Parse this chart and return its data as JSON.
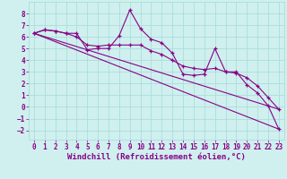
{
  "background_color": "#cff0ee",
  "line_color": "#880088",
  "grid_color": "#aadddd",
  "xlabel": "Windchill (Refroidissement éolien,°C)",
  "xlabel_fontsize": 6.5,
  "tick_fontsize": 5.5,
  "xlim": [
    -0.5,
    23.5
  ],
  "ylim": [
    -2.8,
    9.0
  ],
  "yticks": [
    -2,
    -1,
    0,
    1,
    2,
    3,
    4,
    5,
    6,
    7,
    8
  ],
  "xticks": [
    0,
    1,
    2,
    3,
    4,
    5,
    6,
    7,
    8,
    9,
    10,
    11,
    12,
    13,
    14,
    15,
    16,
    17,
    18,
    19,
    20,
    21,
    22,
    23
  ],
  "series1_x": [
    0,
    1,
    2,
    3,
    4,
    5,
    6,
    7,
    8,
    9,
    10,
    11,
    12,
    13,
    14,
    15,
    16,
    17,
    18,
    19,
    20,
    21,
    22,
    23
  ],
  "series1_y": [
    6.3,
    6.6,
    6.5,
    6.3,
    6.3,
    4.9,
    5.0,
    5.0,
    6.1,
    8.3,
    6.7,
    5.8,
    5.5,
    4.6,
    2.8,
    2.7,
    2.8,
    5.0,
    3.0,
    3.0,
    1.9,
    1.2,
    0.1,
    -1.9
  ],
  "series2_x": [
    0,
    1,
    2,
    3,
    4,
    5,
    6,
    7,
    8,
    9,
    10,
    11,
    12,
    13,
    14,
    15,
    16,
    17,
    18,
    19,
    20,
    21,
    22,
    23
  ],
  "series2_y": [
    6.3,
    6.6,
    6.5,
    6.3,
    6.0,
    5.3,
    5.2,
    5.3,
    5.3,
    5.3,
    5.3,
    4.8,
    4.5,
    4.0,
    3.5,
    3.3,
    3.2,
    3.3,
    3.0,
    2.9,
    2.5,
    1.8,
    0.8,
    -0.2
  ],
  "series3_x": [
    0,
    23
  ],
  "series3_y": [
    6.3,
    -1.9
  ],
  "series4_x": [
    0,
    23
  ],
  "series4_y": [
    6.3,
    -0.2
  ]
}
